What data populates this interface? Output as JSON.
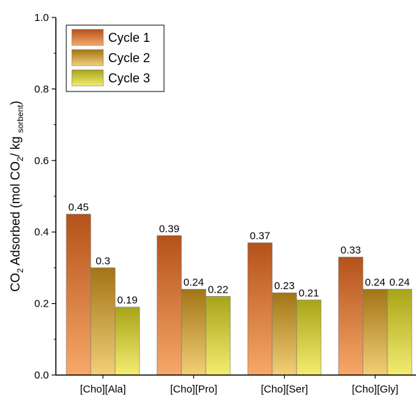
{
  "chart_data": {
    "type": "bar",
    "categories": [
      "[Cho][Ala]",
      "[Cho][Pro]",
      "[Cho][Ser]",
      "[Cho][Gly]"
    ],
    "series": [
      {
        "name": "Cycle 1",
        "values": [
          0.45,
          0.39,
          0.37,
          0.33
        ],
        "labels": [
          "0.45",
          "0.39",
          "0.37",
          "0.33"
        ],
        "color_top": "#b4521a",
        "color_bottom": "#f7a868"
      },
      {
        "name": "Cycle 2",
        "values": [
          0.3,
          0.24,
          0.23,
          0.24
        ],
        "labels": [
          "0.3",
          "0.24",
          "0.23",
          "0.24"
        ],
        "color_top": "#a27516",
        "color_bottom": "#f2cf78"
      },
      {
        "name": "Cycle 3",
        "values": [
          0.19,
          0.22,
          0.21,
          0.24
        ],
        "labels": [
          "0.19",
          "0.22",
          "0.21",
          "0.24"
        ],
        "color_top": "#a8a418",
        "color_bottom": "#f4ec72"
      }
    ],
    "ylim": [
      0.0,
      1.0
    ],
    "yticks": [
      "0.0",
      "0.2",
      "0.4",
      "0.6",
      "0.8",
      "1.0"
    ],
    "ylabel": {
      "parts": [
        {
          "t": "CO",
          "sub": false
        },
        {
          "t": "2",
          "sub": true
        },
        {
          "t": " Adsorbed (mol CO",
          "sub": false
        },
        {
          "t": "2",
          "sub": true
        },
        {
          "t": "/ kg ",
          "sub": false
        },
        {
          "t": "sorbent",
          "sub": true
        },
        {
          "t": ")",
          "sub": false
        }
      ]
    },
    "xlabel": "",
    "legend_position": "top-left",
    "grid": false
  }
}
